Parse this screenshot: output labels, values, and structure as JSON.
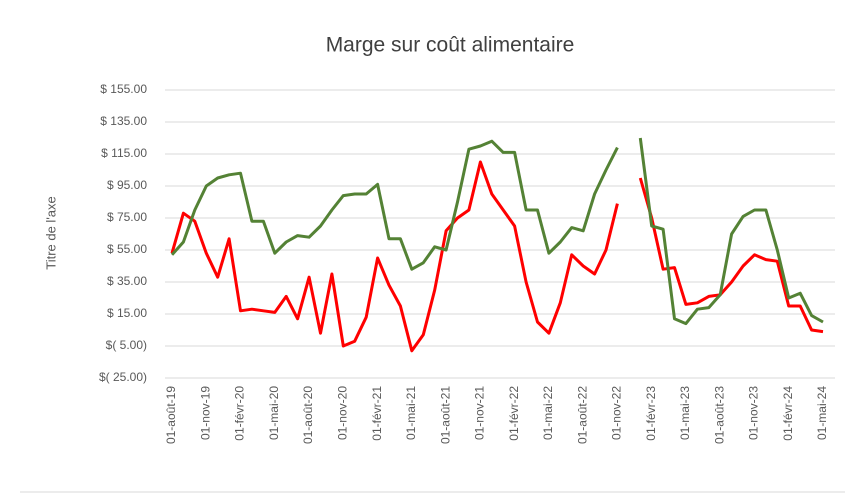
{
  "chart_data": {
    "type": "line",
    "title": "Marge sur coût alimentaire",
    "y_label": "Titre de l'axe",
    "categories": [
      "01-août-19",
      null,
      null,
      "01-nov-19",
      null,
      null,
      "01-févr-20",
      null,
      null,
      "01-mai-20",
      null,
      null,
      "01-août-20",
      null,
      null,
      "01-nov-20",
      null,
      null,
      "01-févr-21",
      null,
      null,
      "01-mai-21",
      null,
      null,
      "01-août-21",
      null,
      null,
      "01-nov-21",
      null,
      null,
      "01-févr-22",
      null,
      null,
      "01-mai-22",
      null,
      null,
      "01-août-22",
      null,
      null,
      "01-nov-22",
      null,
      null,
      "01-févr-23",
      null,
      null,
      "01-mai-23",
      null,
      null,
      "01-août-23",
      null,
      null,
      "01-nov-23",
      null,
      null,
      "01-févr-24",
      null,
      null,
      "01-mai-24"
    ],
    "series": [
      {
        "color": "#ff0000",
        "values": [
          53,
          78,
          73,
          53,
          38,
          62,
          17,
          18,
          17,
          16,
          26,
          12,
          38,
          3,
          40,
          -5,
          -2,
          13,
          50,
          33,
          20,
          -8,
          2,
          30,
          67,
          75,
          80,
          110,
          90,
          80,
          70,
          35,
          10,
          3,
          22,
          52,
          45,
          40,
          55,
          84,
          null,
          100,
          75,
          43,
          44,
          21,
          22,
          26,
          27,
          35,
          45,
          52,
          49,
          48,
          20,
          20,
          5,
          4
        ]
      },
      {
        "color": "#548235",
        "values": [
          52,
          60,
          80,
          95,
          100,
          102,
          103,
          73,
          73,
          53,
          60,
          64,
          63,
          70,
          80,
          89,
          90,
          90,
          96,
          62,
          62,
          43,
          47,
          57,
          55,
          85,
          118,
          120,
          123,
          116,
          116,
          80,
          80,
          53,
          60,
          69,
          67,
          90,
          105,
          119,
          null,
          125,
          70,
          68,
          12,
          9,
          18,
          19,
          27,
          65,
          76,
          80,
          80,
          55,
          25,
          28,
          14,
          10
        ]
      }
    ],
    "ylim": [
      -25,
      155
    ],
    "yticks": [
      {
        "value": -25,
        "label": "$( 25.00)"
      },
      {
        "value": -5,
        "label": "$( 5.00)"
      },
      {
        "value": 15,
        "label": "$ 15.00"
      },
      {
        "value": 35,
        "label": "$ 35.00"
      },
      {
        "value": 55,
        "label": "$ 55.00"
      },
      {
        "value": 75,
        "label": "$ 75.00"
      },
      {
        "value": 95,
        "label": "$ 95.00"
      },
      {
        "value": 115,
        "label": "$ 115.00"
      },
      {
        "value": 135,
        "label": "$ 135.00"
      },
      {
        "value": 155,
        "label": "$ 155.00"
      }
    ],
    "grid": true
  }
}
